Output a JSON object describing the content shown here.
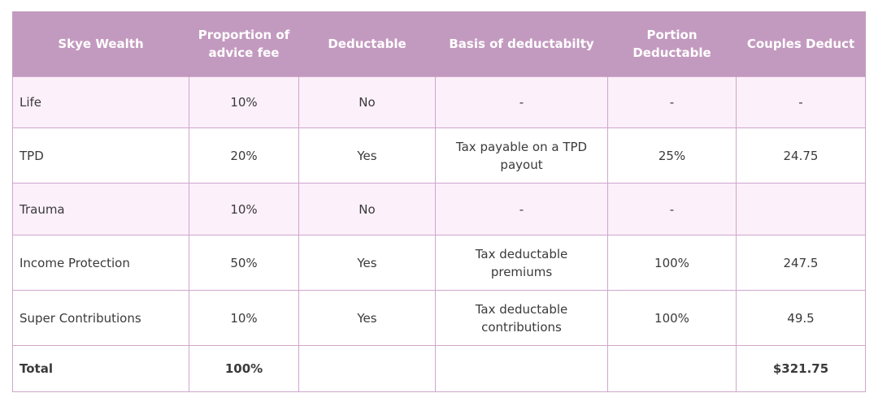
{
  "headers": [
    "Skye Wealth",
    "Proportion of advice fee",
    "Deductable",
    "Basis of deductabilty",
    "Portion Deductable",
    "Couples Deduct"
  ],
  "rows": [
    {
      "name": "Life",
      "proportion": "10%",
      "deductable": "No",
      "basis": "-",
      "portion": "-",
      "couples": "-"
    },
    {
      "name": "TPD",
      "proportion": "20%",
      "deductable": "Yes",
      "basis": "Tax payable on a TPD payout",
      "portion": "25%",
      "couples": "24.75"
    },
    {
      "name": "Trauma",
      "proportion": "10%",
      "deductable": "No",
      "basis": "-",
      "portion": "-",
      "couples": ""
    },
    {
      "name": "Income Protection",
      "proportion": "50%",
      "deductable": "Yes",
      "basis": "Tax deductable premiums",
      "portion": "100%",
      "couples": "247.5"
    },
    {
      "name": "Super Contributions",
      "proportion": "10%",
      "deductable": "Yes",
      "basis": "Tax deductable contributions",
      "portion": "100%",
      "couples": "49.5"
    }
  ],
  "total": {
    "label": "Total",
    "proportion": "100%",
    "deductable": "",
    "basis": "",
    "portion": "",
    "couples": "$321.75"
  },
  "colors": {
    "header_bg": "#c39abf",
    "header_text": "#ffffff",
    "row_tint": "#fcf0fa",
    "border": "#cfa6cc"
  }
}
